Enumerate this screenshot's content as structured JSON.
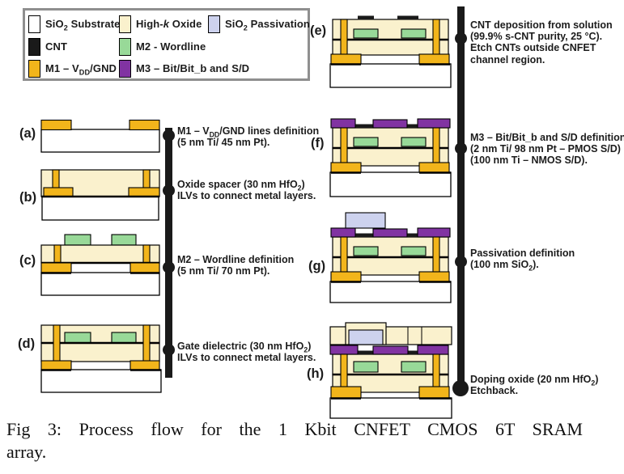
{
  "figure": {
    "type": "process-flow-diagram"
  },
  "colors": {
    "oxide": "#faf1cd",
    "gold": "#f2b51b",
    "green": "#98d998",
    "purple": "#8133a2",
    "lavender": "#cdd2ee",
    "cnt": "#1a1a1a",
    "substrate": "#ffffff",
    "bar": "#1a1a1a",
    "text": "#1c1c1c"
  },
  "legend": {
    "items": [
      {
        "label": "SiO<sub>2</sub> Substrate",
        "color_key": "substrate"
      },
      {
        "label": "High-<i>k</i> Oxide",
        "color_key": "oxide"
      },
      {
        "label": "SiO<sub>2</sub> Passivation",
        "color_key": "lavender"
      },
      {
        "label": "CNT",
        "color_key": "cnt"
      },
      {
        "label": "M2 - Wordline",
        "color_key": "green"
      },
      {
        "label": "M1 – V<sub>DD</sub>/GND",
        "color_key": "gold"
      },
      {
        "label": "M3 – Bit/Bit_b and S/D",
        "color_key": "purple"
      }
    ]
  },
  "panels": [
    {
      "label": "(a)"
    },
    {
      "label": "(b)"
    },
    {
      "label": "(c)"
    },
    {
      "label": "(d)"
    },
    {
      "label": "(e)"
    },
    {
      "label": "(f)"
    },
    {
      "label": "(g)"
    },
    {
      "label": "(h)"
    }
  ],
  "steps": [
    {
      "panel": "a",
      "lines": [
        "M1 – V<sub>DD</sub>/GND lines definition",
        "(5 nm Ti/ 45 nm Pt)."
      ]
    },
    {
      "panel": "b",
      "lines": [
        "Oxide spacer (30 nm HfO<sub>2</sub>)",
        "ILVs to connect metal layers."
      ]
    },
    {
      "panel": "c",
      "lines": [
        "M2 – Wordline definition",
        "(5 nm Ti/ 70 nm Pt)."
      ]
    },
    {
      "panel": "d",
      "lines": [
        "Gate dielectric (30 nm HfO<sub>2</sub>)",
        "ILVs to connect metal layers."
      ]
    },
    {
      "panel": "e",
      "lines": [
        "CNT deposition from solution",
        "(99.9% s-CNT purity, 25 °C).",
        "Etch CNTs outside CNFET",
        "channel region."
      ]
    },
    {
      "panel": "f",
      "lines": [
        "M3 – Bit/Bit_b and S/D definition",
        "(2 nm Ti/ 98 nm Pt – PMOS S/D)",
        "(100 nm Ti – NMOS S/D)."
      ]
    },
    {
      "panel": "g",
      "lines": [
        "Passivation definition",
        "(100 nm SiO<sub>2</sub>)."
      ]
    },
    {
      "panel": "h",
      "lines": [
        "Doping oxide (20 nm HfO<sub>2</sub>)",
        "Etchback."
      ]
    }
  ],
  "caption": {
    "line1": "Fig 3: Process flow for the 1 Kbit CNFET CMOS 6T SRAM",
    "line2": "array."
  }
}
